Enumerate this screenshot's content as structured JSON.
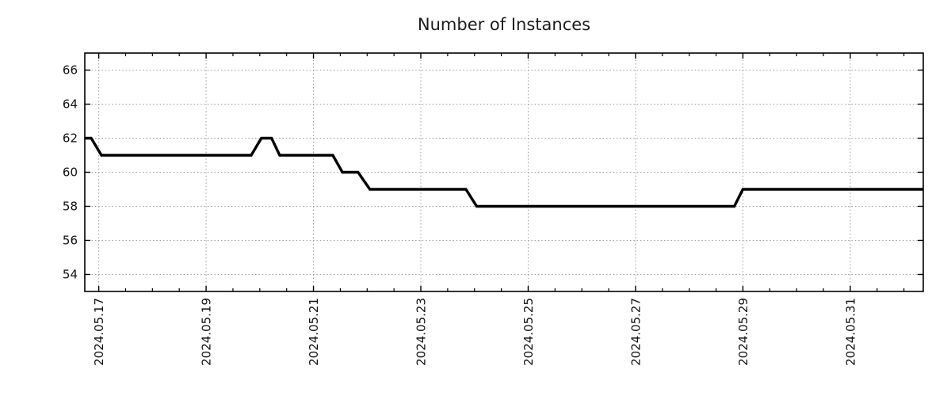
{
  "title": "Number of Instances",
  "colors": {
    "background": "#ffffff",
    "line": "#000000",
    "grid": "#9c9c9c",
    "axis": "#000000",
    "title_text": "#1c1c1c",
    "tick_text": "#111111"
  },
  "chart_data": {
    "type": "line",
    "title": "Number of Instances",
    "xlabel": "",
    "ylabel": "",
    "grid": true,
    "legend": "none",
    "x_unit": "days since 2024-05-17 00:00",
    "xlim": [
      -0.26,
      15.36
    ],
    "ylim": [
      53,
      67
    ],
    "x_tick_positions": [
      0,
      2,
      4,
      6,
      8,
      10,
      12,
      14
    ],
    "x_tick_labels": [
      "2024.05.17",
      "2024.05.19",
      "2024.05.21",
      "2024.05.23",
      "2024.05.25",
      "2024.05.27",
      "2024.05.29",
      "2024.05.31"
    ],
    "x_minor_step": 0.5,
    "y_ticks": [
      54,
      56,
      58,
      60,
      62,
      64,
      66
    ],
    "series": [
      {
        "name": "instances",
        "points": [
          [
            -0.26,
            62
          ],
          [
            -0.14,
            62
          ],
          [
            0.05,
            61
          ],
          [
            2.84,
            61
          ],
          [
            3.03,
            62
          ],
          [
            3.22,
            62
          ],
          [
            3.37,
            61
          ],
          [
            4.36,
            61
          ],
          [
            4.54,
            60
          ],
          [
            4.83,
            60
          ],
          [
            5.05,
            59
          ],
          [
            6.84,
            59
          ],
          [
            7.04,
            58
          ],
          [
            11.84,
            58
          ],
          [
            12.0,
            59
          ],
          [
            15.36,
            59
          ]
        ]
      }
    ]
  }
}
